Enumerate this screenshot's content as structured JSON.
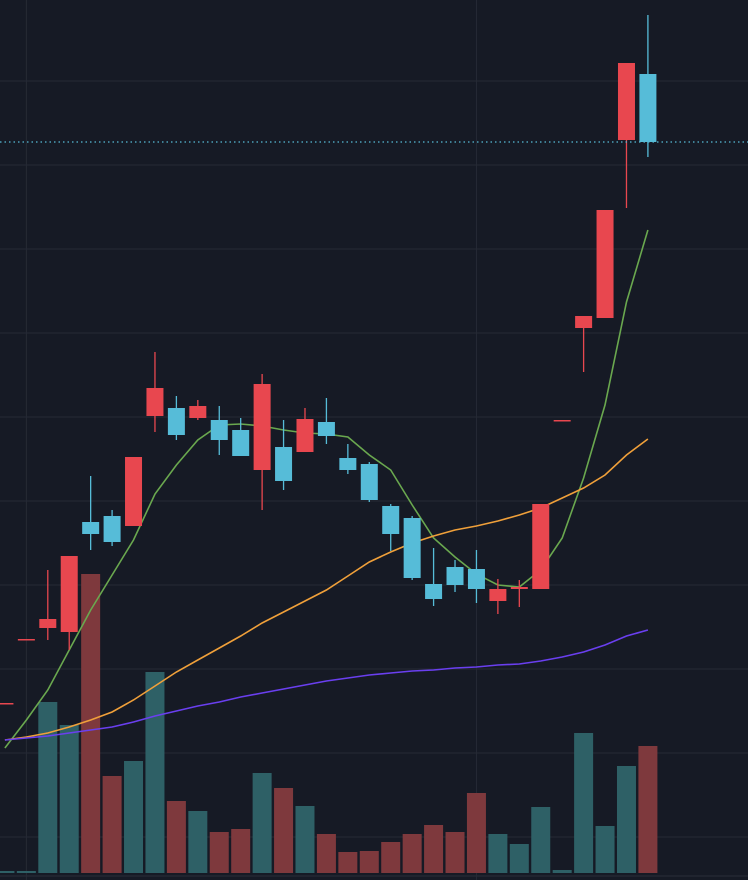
{
  "chart_data": {
    "type": "candlestick",
    "xlim": [
      -0.23,
      34.67
    ],
    "ylim": [
      0,
      880
    ],
    "yticks": [
      43,
      127,
      211,
      295,
      379,
      463,
      547,
      631,
      715,
      799
    ],
    "xticks": [
      1,
      22
    ],
    "grid": true,
    "up_color": "#e8474f",
    "down_color": "#56bcd8",
    "candles": {
      "open": [
        177,
        241,
        252,
        248,
        358,
        364,
        354,
        464,
        472,
        462,
        460,
        450,
        410,
        433,
        428,
        458,
        422,
        416,
        374,
        362,
        296,
        313,
        311,
        279,
        291,
        291,
        460,
        552,
        562,
        740,
        806
      ],
      "high": [
        177,
        241,
        310,
        324,
        404,
        370,
        423,
        528,
        484,
        480,
        474,
        462,
        506,
        460,
        472,
        482,
        436,
        418,
        376,
        364,
        332,
        320,
        330,
        301,
        300,
        376,
        460,
        564,
        670,
        817,
        865
      ],
      "low": [
        177,
        241,
        240,
        230,
        330,
        334,
        354,
        448,
        440,
        460,
        425,
        424,
        370,
        390,
        428,
        436,
        406,
        378,
        329,
        300,
        274,
        288,
        277,
        266,
        273,
        291,
        460,
        508,
        562,
        672,
        723
      ],
      "close": [
        177,
        241,
        261,
        324,
        346,
        338,
        423,
        492,
        445,
        474,
        440,
        424,
        496,
        399,
        461,
        444,
        410,
        380,
        346,
        302,
        281,
        295,
        291,
        291,
        293,
        376,
        460,
        564,
        670,
        817,
        738
      ]
    },
    "price_line": 738,
    "price_line_color": "#56bcd8",
    "volume": {
      "vlim": [
        0,
        873
      ],
      "values": [
        2,
        2,
        171,
        148,
        299,
        97,
        112,
        201,
        72,
        62,
        41,
        44,
        100,
        85,
        67,
        39,
        21,
        22,
        31,
        39,
        48,
        41,
        80,
        39,
        29,
        66,
        3,
        140,
        47,
        107,
        127
      ],
      "colors": [
        "#2e6066",
        "#2e6066",
        "#2e6066",
        "#2e6066",
        "#7e393d",
        "#7e393d",
        "#2e6066",
        "#2e6066",
        "#7e393d",
        "#2e6066",
        "#7e393d",
        "#7e393d",
        "#2e6066",
        "#7e393d",
        "#2e6066",
        "#7e393d",
        "#7e393d",
        "#7e393d",
        "#7e393d",
        "#7e393d",
        "#7e393d",
        "#7e393d",
        "#7e393d",
        "#2e6066",
        "#2e6066",
        "#2e6066",
        "#2e6066",
        "#2e6066",
        "#2e6066",
        "#2e6066",
        "#7e393d"
      ]
    },
    "series": [
      {
        "color": "#6aa84f",
        "values": [
          132,
          160,
          190,
          230,
          270,
          305,
          340,
          386,
          415,
          440,
          455,
          456,
          454,
          450,
          447,
          446,
          443,
          425,
          410,
          375,
          342,
          323,
          306,
          295,
          293,
          310,
          342,
          402,
          475,
          578,
          650
        ]
      },
      {
        "color": "#f0a03a",
        "values": [
          140,
          143,
          147,
          153,
          160,
          168,
          180,
          194,
          208,
          220,
          232,
          244,
          257,
          268,
          279,
          290,
          304,
          318,
          328,
          337,
          344,
          350,
          354,
          359,
          365,
          372,
          382,
          392,
          405,
          425,
          441
        ]
      },
      {
        "color": "#6a3ff0",
        "values": [
          140,
          142,
          144,
          147,
          150,
          153,
          158,
          164,
          169,
          174,
          178,
          183,
          187,
          191,
          195,
          199,
          202,
          205,
          207,
          209,
          210,
          212,
          213,
          215,
          216,
          219,
          223,
          228,
          235,
          244,
          250
        ]
      }
    ]
  }
}
